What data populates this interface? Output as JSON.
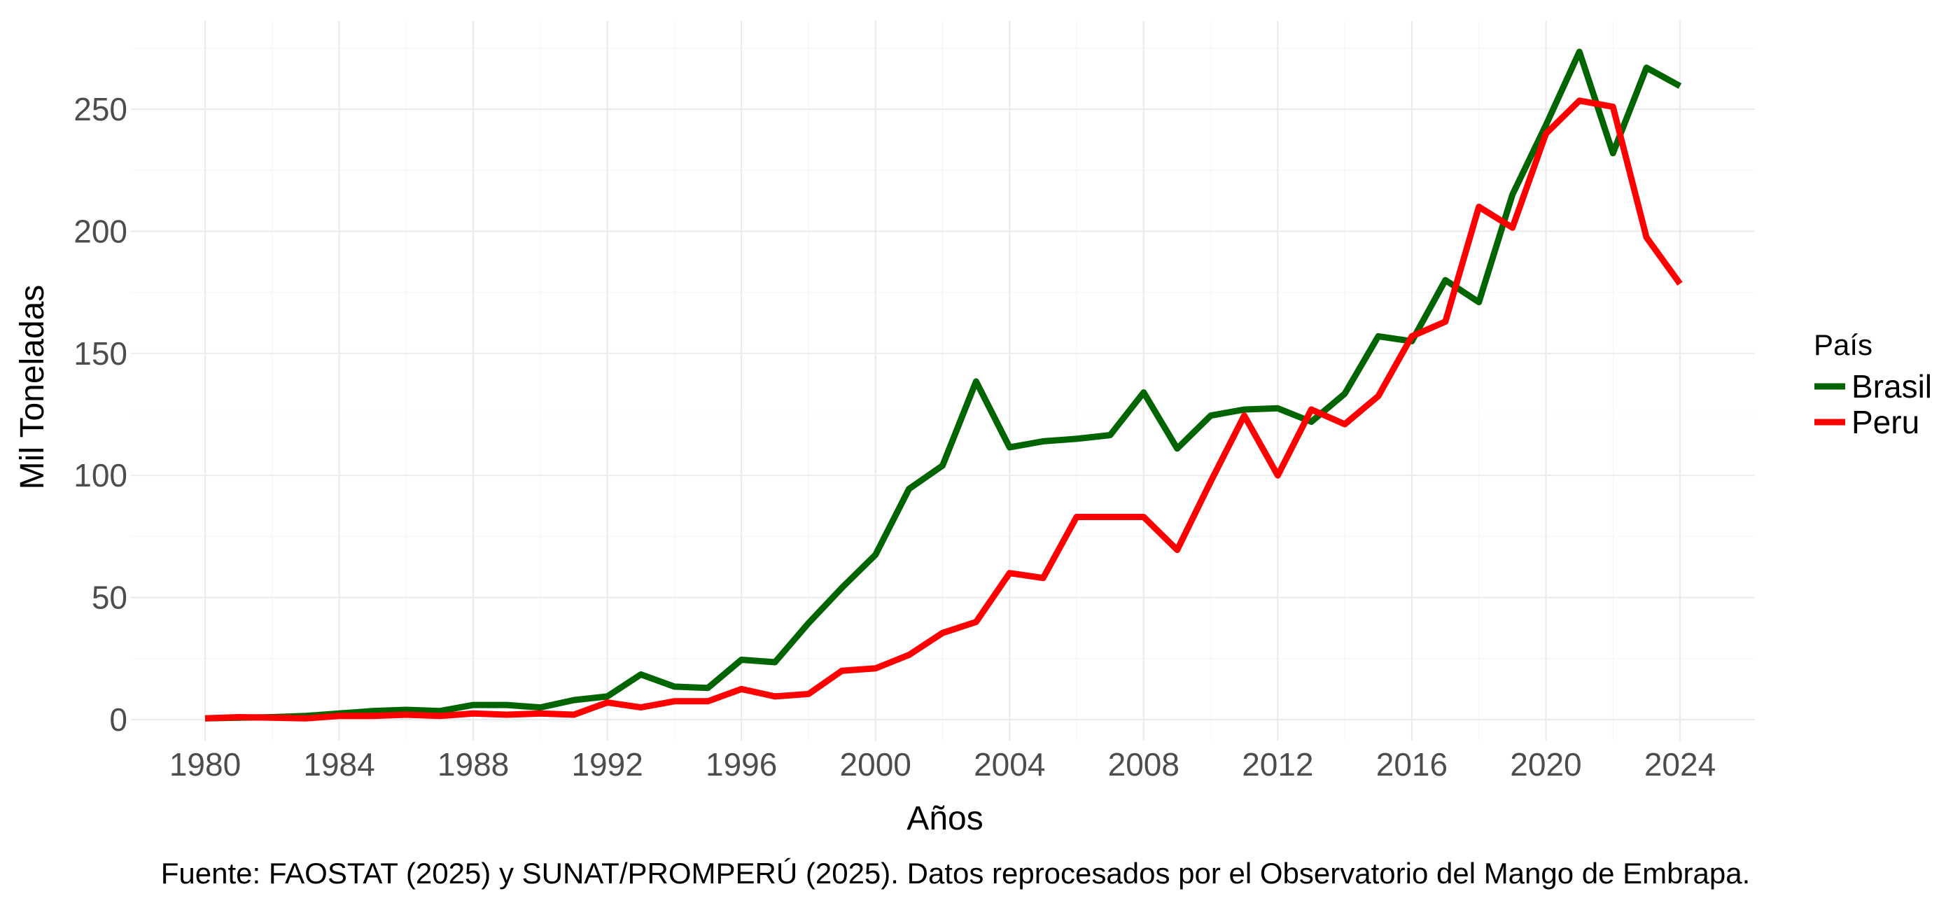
{
  "chart_data": {
    "type": "line",
    "title": "",
    "xlabel": "Años",
    "ylabel": "Mil Toneladas",
    "caption": "Fuente: FAOSTAT (2025) y SUNAT/PROMPERÚ (2025). Datos reprocesados por el Observatorio del Mango de Embrapa.",
    "xlim": [
      1980,
      2024
    ],
    "ylim": [
      0,
      275
    ],
    "x_ticks": [
      1980,
      1984,
      1988,
      1992,
      1996,
      2000,
      2004,
      2008,
      2012,
      2016,
      2020,
      2024
    ],
    "y_ticks": [
      0,
      50,
      100,
      150,
      200,
      250
    ],
    "grid": true,
    "legend": {
      "title": "País",
      "position": "right"
    },
    "x": [
      1980,
      1981,
      1982,
      1983,
      1984,
      1985,
      1986,
      1987,
      1988,
      1989,
      1990,
      1991,
      1992,
      1993,
      1994,
      1995,
      1996,
      1997,
      1998,
      1999,
      2000,
      2001,
      2002,
      2003,
      2004,
      2005,
      2006,
      2007,
      2008,
      2009,
      2010,
      2011,
      2012,
      2013,
      2014,
      2015,
      2016,
      2017,
      2018,
      2019,
      2020,
      2021,
      2022,
      2023,
      2024
    ],
    "series": [
      {
        "name": "Brasil",
        "color": "#006400",
        "values": [
          0.5,
          0.8,
          1,
          1.5,
          2.5,
          3.5,
          4,
          3.5,
          6,
          6,
          5,
          8,
          9.5,
          18.5,
          13.5,
          13,
          24.5,
          23.5,
          39.5,
          54,
          67.5,
          94.5,
          104,
          138.5,
          111.5,
          114,
          115,
          116.5,
          134,
          111,
          124.5,
          127,
          127.5,
          122,
          133.5,
          157,
          155,
          180,
          171,
          215,
          243.5,
          273.5,
          232,
          267,
          259.5
        ]
      },
      {
        "name": "Peru",
        "color": "#ff0000",
        "values": [
          0.5,
          1,
          0.8,
          0.5,
          1.5,
          1.5,
          2,
          1.5,
          2.5,
          2,
          2.5,
          2,
          7,
          5,
          7.5,
          7.5,
          12.5,
          9.5,
          10.5,
          20,
          21,
          26.5,
          35.5,
          40,
          60,
          58,
          83,
          83,
          83,
          69.5,
          97.5,
          124.5,
          100,
          127,
          121,
          132.5,
          157,
          163,
          210,
          201.5,
          240,
          253.5,
          251,
          197.5,
          178.5
        ]
      }
    ]
  }
}
